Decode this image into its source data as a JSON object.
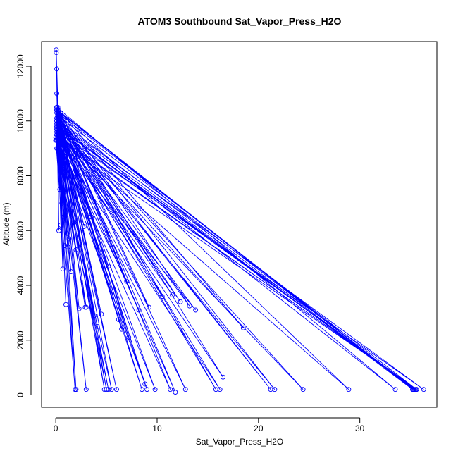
{
  "chart_data": {
    "type": "line",
    "title": "ATOM3 Southbound Sat_Vapor_Press_H2O",
    "xlabel": "Sat_Vapor_Press_H2O",
    "ylabel": "Altitude (m)",
    "xlim": [
      -1.4,
      37.6
    ],
    "ylim": [
      -450,
      12900
    ],
    "xticks": [
      0,
      10,
      20,
      30
    ],
    "yticks": [
      0,
      2000,
      4000,
      6000,
      8000,
      10000,
      12000
    ],
    "line_color": "#0000ff",
    "marker": "open-circle",
    "grid": false,
    "series": [
      {
        "x": [
          0.05,
          0.2,
          0.1,
          0.3,
          0.1,
          0.5,
          0.2,
          1.0,
          0.3,
          2.0,
          0.4,
          4.8,
          0.2,
          0.0,
          0.5,
          3.0,
          0.1,
          1.2,
          0.3,
          5.0,
          0.2,
          8.5,
          0.1,
          0.6,
          0.0,
          1.5,
          0.2,
          35.3,
          0.4,
          24.4,
          0.1,
          2.9,
          0.3,
          35.6,
          0.2,
          21.6,
          0.1,
          0.8,
          0.0,
          5.5,
          0.3,
          15.8,
          0.2,
          35.5,
          0.1,
          28.9,
          0.2,
          10.5,
          0.1,
          35.6,
          0.0,
          3.0,
          0.3,
          6.0,
          0.2,
          33.5,
          0.1,
          12.8,
          0.2,
          36.3,
          0.1,
          16.2,
          0.0,
          9.0,
          0.2,
          35.4,
          0.1,
          8.8,
          0.3,
          11.3,
          0.0,
          9.8,
          0.1,
          21.2,
          0.3,
          35.2,
          0.1,
          11.8,
          0.2,
          5.2,
          0.0,
          1.9,
          0.1,
          0.4,
          0.2,
          0.3,
          0.1,
          0.2,
          0.05
        ],
        "y": [
          12600,
          10300,
          11900,
          9500,
          11000,
          6200,
          10500,
          3300,
          9300,
          200,
          10100,
          200,
          9700,
          9300,
          8500,
          200,
          10500,
          5400,
          9000,
          200,
          10200,
          200,
          9800,
          7000,
          9300,
          4500,
          10400,
          200,
          10000,
          200,
          9600,
          3200,
          9400,
          200,
          10300,
          200,
          9900,
          6500,
          9300,
          200,
          10200,
          200,
          9800,
          200,
          9500,
          200,
          10400,
          3600,
          9700,
          200,
          9300,
          3200,
          10100,
          200,
          9900,
          200,
          10500,
          200,
          9600,
          200,
          10000,
          200,
          9300,
          200,
          10200,
          200,
          9800,
          400,
          10300,
          200,
          9400,
          200,
          10100,
          200,
          9900,
          200,
          10400,
          100,
          9700,
          200,
          9300,
          200,
          10000,
          7500,
          9600,
          6000,
          10300,
          9000,
          12500
        ]
      },
      {
        "x": [
          0.1,
          1.8,
          0.2,
          2.8,
          0.3,
          3.8,
          0.2,
          4.5,
          0.4,
          5.2,
          0.3,
          6.5,
          0.2,
          7.2,
          0.5,
          9.2,
          0.3,
          11.5,
          0.2,
          12.3,
          0.4,
          13.2,
          0.3,
          18.5,
          0.2,
          13.8,
          0.1,
          7.0,
          0.3,
          6.2,
          0.2,
          3.5,
          0.4,
          2.3,
          0.1,
          1.1,
          0.3,
          16.5,
          0.2,
          4.1,
          0.1,
          8.2,
          0.3,
          2.0,
          0.2,
          1.3,
          0.1,
          0.7,
          0.4,
          0.9
        ],
        "y": [
          9000,
          6300,
          10200,
          6150,
          9500,
          2900,
          10400,
          2950,
          9800,
          4700,
          10000,
          2400,
          9700,
          2100,
          10300,
          3200,
          9500,
          3650,
          10100,
          3400,
          9600,
          3250,
          10400,
          2450,
          9900,
          3100,
          9300,
          4150,
          10200,
          2750,
          9800,
          6500,
          10000,
          3150,
          9700,
          5900,
          10300,
          650,
          9500,
          2500,
          10100,
          3100,
          9600,
          5300,
          9900,
          5700,
          10400,
          4600,
          9300,
          5450
        ]
      }
    ]
  }
}
